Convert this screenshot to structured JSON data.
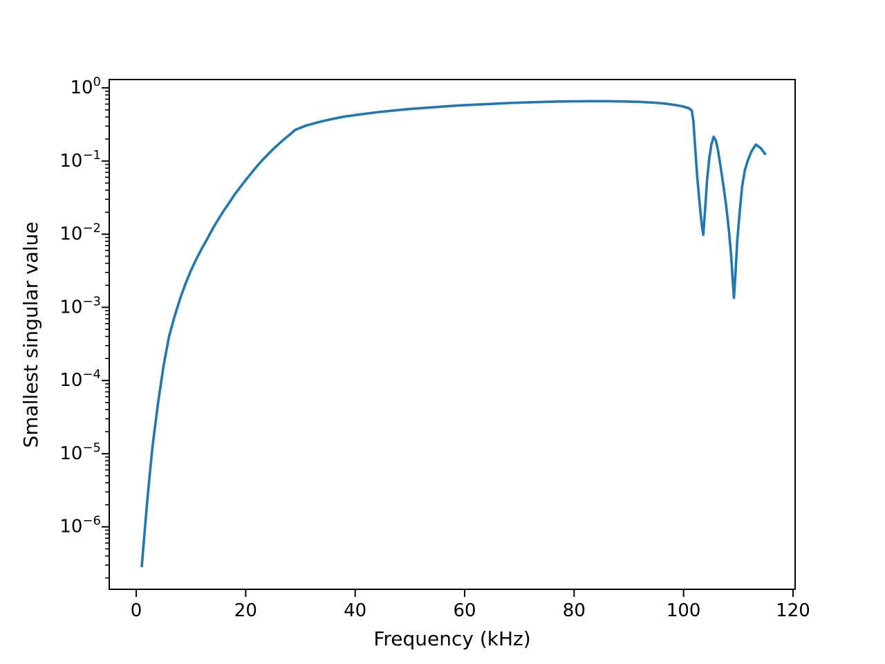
{
  "figure": {
    "background": "#ffffff",
    "spine_color": "#000000",
    "text_color": "#000000"
  },
  "chart_data": {
    "type": "line",
    "title": "",
    "xlabel": "Frequency (kHz)",
    "ylabel": "Smallest singular value",
    "grid": false,
    "legend": "none",
    "x_axis": {
      "scale": "linear",
      "lim": [
        -4.93,
        120.38
      ],
      "ticks": [
        0,
        20,
        40,
        60,
        80,
        100,
        120
      ],
      "tick_labels": [
        "0",
        "20",
        "40",
        "60",
        "80",
        "100",
        "120"
      ]
    },
    "y_axis": {
      "scale": "log",
      "lim": [
        1.4e-07,
        1.3
      ],
      "tick_exponents": [
        0,
        -1,
        -2,
        -3,
        -4,
        -5,
        -6
      ],
      "tick_labels": [
        "10^0",
        "10^-1",
        "10^-2",
        "10^-3",
        "10^-4",
        "10^-5",
        "10^-6"
      ],
      "minor_ticks": true
    },
    "series": [
      {
        "name": "smallest-singular-value",
        "color": "#1f77b4",
        "line_width": 3.6,
        "points": [
          [
            1,
            2.8e-07
          ],
          [
            1.5,
            8e-07
          ],
          [
            2,
            2.2e-06
          ],
          [
            2.5,
            5.5e-06
          ],
          [
            3,
            1.3e-05
          ],
          [
            4,
            5e-05
          ],
          [
            5,
            0.00016
          ],
          [
            6,
            0.0004
          ],
          [
            7,
            0.00075
          ],
          [
            8,
            0.0013
          ],
          [
            9,
            0.0021
          ],
          [
            10,
            0.0032
          ],
          [
            11,
            0.0046
          ],
          [
            12,
            0.0064
          ],
          [
            13,
            0.0087
          ],
          [
            14,
            0.012
          ],
          [
            15,
            0.016
          ],
          [
            16,
            0.021
          ],
          [
            17,
            0.027
          ],
          [
            18,
            0.035
          ],
          [
            19,
            0.044
          ],
          [
            20,
            0.055
          ],
          [
            21,
            0.068
          ],
          [
            22,
            0.084
          ],
          [
            23,
            0.102
          ],
          [
            24,
            0.122
          ],
          [
            25,
            0.145
          ],
          [
            26,
            0.17
          ],
          [
            27,
            0.198
          ],
          [
            28,
            0.228
          ],
          [
            29,
            0.265
          ],
          [
            31,
            0.305
          ],
          [
            33,
            0.335
          ],
          [
            35,
            0.365
          ],
          [
            38,
            0.405
          ],
          [
            41,
            0.435
          ],
          [
            44,
            0.465
          ],
          [
            47,
            0.49
          ],
          [
            50,
            0.515
          ],
          [
            53,
            0.535
          ],
          [
            56,
            0.555
          ],
          [
            59,
            0.575
          ],
          [
            62,
            0.59
          ],
          [
            65,
            0.605
          ],
          [
            68,
            0.62
          ],
          [
            71,
            0.632
          ],
          [
            74,
            0.642
          ],
          [
            77,
            0.65
          ],
          [
            80,
            0.655
          ],
          [
            83,
            0.658
          ],
          [
            86,
            0.657
          ],
          [
            89,
            0.652
          ],
          [
            92,
            0.643
          ],
          [
            95,
            0.625
          ],
          [
            97,
            0.605
          ],
          [
            99,
            0.575
          ],
          [
            100,
            0.555
          ],
          [
            101,
            0.525
          ],
          [
            101.5,
            0.49
          ],
          [
            101.8,
            0.35
          ],
          [
            102.1,
            0.16
          ],
          [
            102.5,
            0.06
          ],
          [
            102.9,
            0.028
          ],
          [
            103.3,
            0.014
          ],
          [
            103.6,
            0.0098
          ],
          [
            103.9,
            0.02
          ],
          [
            104.3,
            0.055
          ],
          [
            104.7,
            0.11
          ],
          [
            105.1,
            0.17
          ],
          [
            105.5,
            0.215
          ],
          [
            105.9,
            0.19
          ],
          [
            106.3,
            0.14
          ],
          [
            106.8,
            0.08
          ],
          [
            107.3,
            0.045
          ],
          [
            107.8,
            0.024
          ],
          [
            108.3,
            0.011
          ],
          [
            108.7,
            0.005
          ],
          [
            109.0,
            0.0022
          ],
          [
            109.2,
            0.00135
          ],
          [
            109.5,
            0.003
          ],
          [
            109.8,
            0.008
          ],
          [
            110.2,
            0.018
          ],
          [
            110.7,
            0.045
          ],
          [
            111.2,
            0.075
          ],
          [
            111.8,
            0.105
          ],
          [
            112.4,
            0.135
          ],
          [
            113.2,
            0.168
          ],
          [
            114.1,
            0.15
          ],
          [
            115,
            0.122
          ]
        ]
      }
    ]
  }
}
